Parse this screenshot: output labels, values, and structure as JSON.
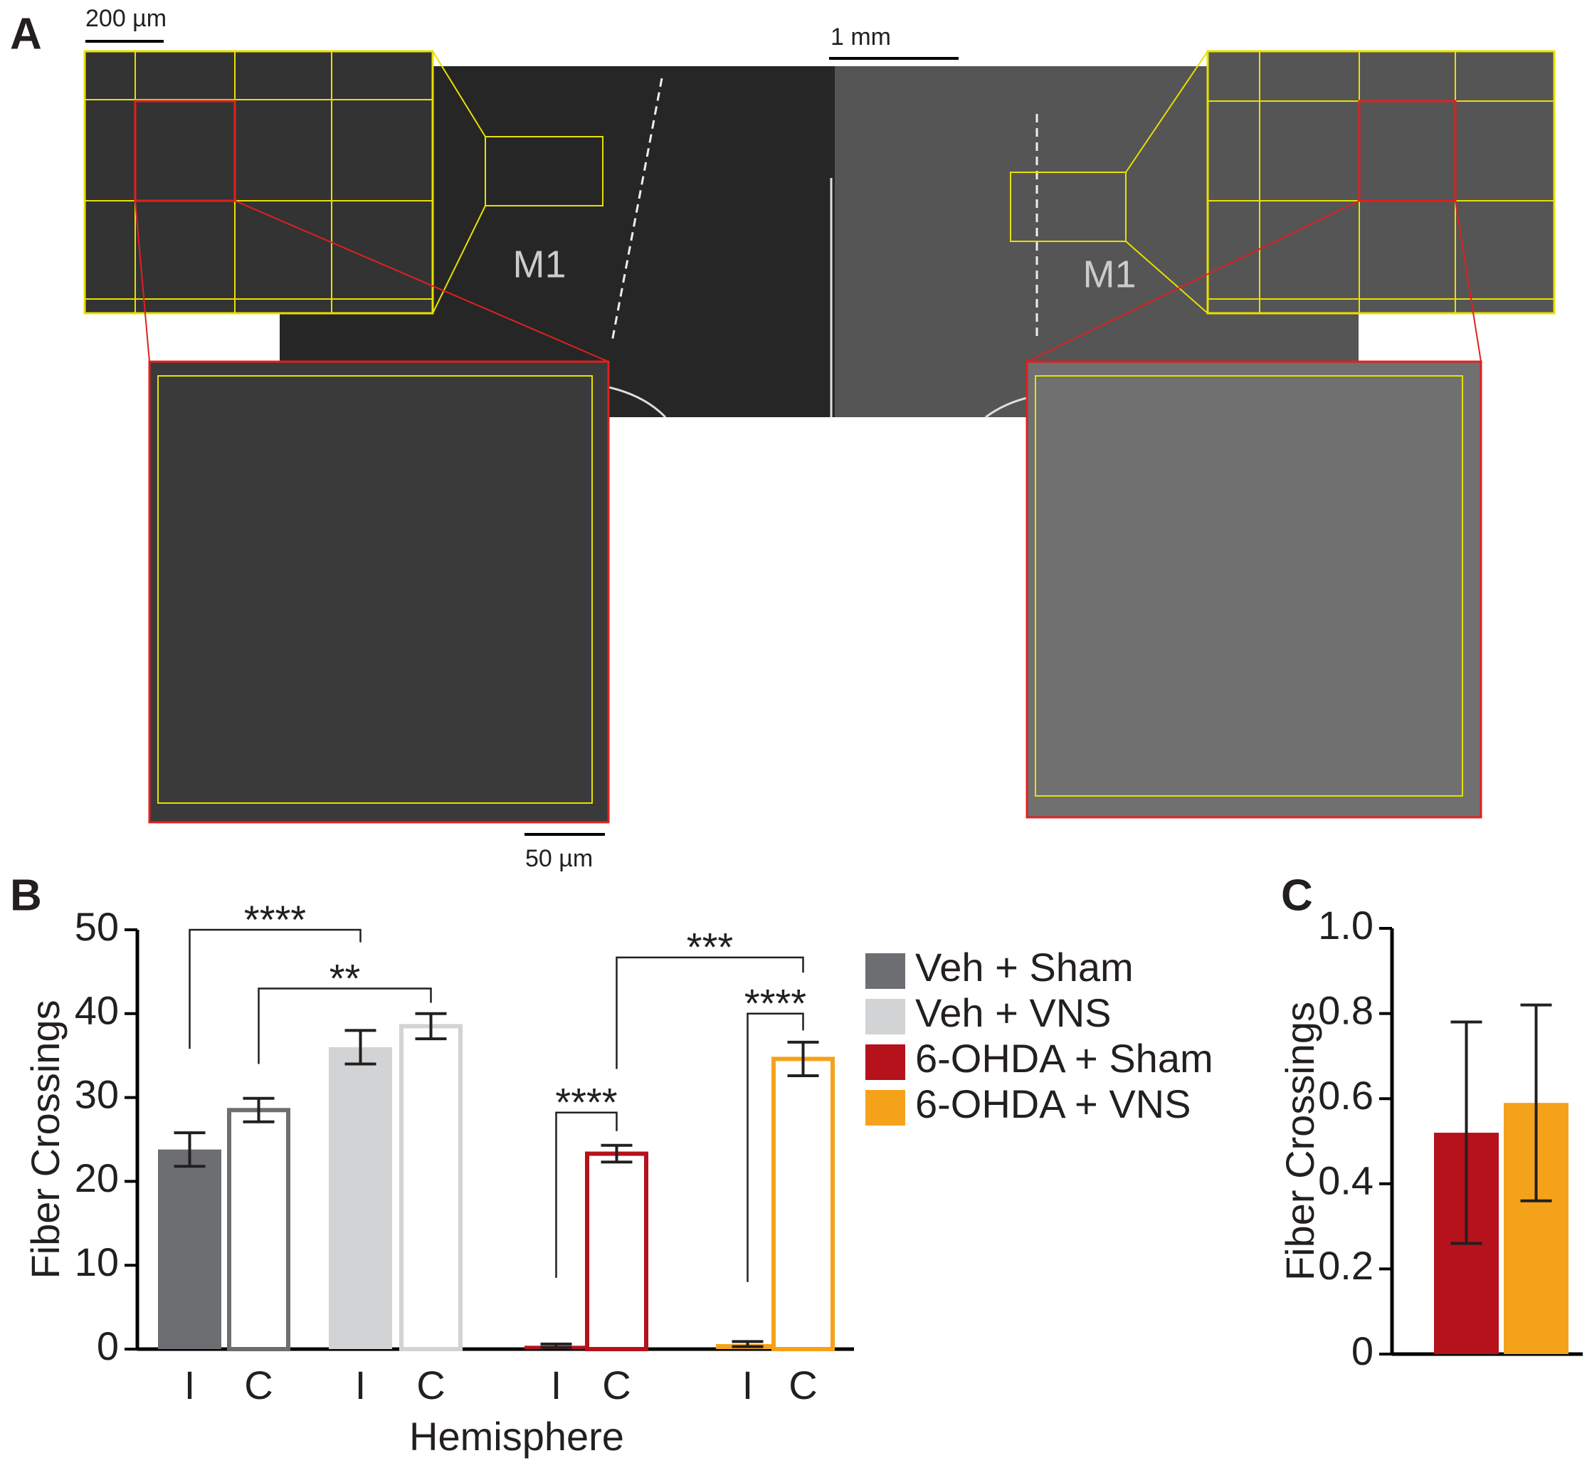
{
  "panel_a": {
    "label": "A",
    "scale_bars": [
      "200 µm",
      "1 mm",
      "50 µm"
    ],
    "regions": [
      "M1",
      "M1"
    ]
  },
  "chart_data": [
    {
      "type": "bar",
      "panel_label": "B",
      "ylabel": "Fiber Crossings",
      "xlabel": "Hemisphere",
      "categories": [
        "I",
        "C"
      ],
      "series": [
        {
          "name": "Veh + Sham",
          "color": "#6d6e71",
          "values": [
            23.8,
            28.5
          ],
          "errors": [
            2,
            1.4
          ]
        },
        {
          "name": "Veh + VNS",
          "color": "#d1d3d4",
          "values": [
            36,
            38.5
          ],
          "errors": [
            2,
            1.5
          ]
        },
        {
          "name": "6-OHDA + Sham",
          "color": "#b5121b",
          "values": [
            0.4,
            23.3
          ],
          "errors": [
            0.2,
            1
          ]
        },
        {
          "name": "6-OHDA + VNS",
          "color": "#f5a21b",
          "values": [
            0.6,
            34.6
          ],
          "errors": [
            0.3,
            2
          ]
        }
      ],
      "annotations": [
        "****",
        "**",
        "***",
        "****",
        "****"
      ],
      "ylim": [
        0,
        50
      ],
      "yticks": [
        0,
        10,
        20,
        30,
        40,
        50
      ],
      "legend": "right"
    },
    {
      "type": "bar",
      "panel_label": "C",
      "ylabel": "Fiber Crossings",
      "categories": [
        null,
        null
      ],
      "values": [
        0.52,
        0.59
      ],
      "errors": [
        0.26,
        0.23
      ],
      "colors": [
        "#b5121b",
        "#f5a21b"
      ],
      "ylim": [
        0,
        1
      ],
      "yticks": [
        0,
        0.2,
        0.4,
        0.6,
        0.8,
        {
          "value": 1,
          "label": "1.0"
        }
      ]
    }
  ]
}
